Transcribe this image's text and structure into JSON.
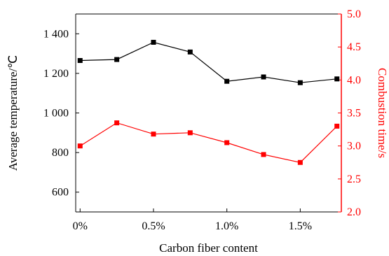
{
  "chart_data": {
    "type": "line",
    "x": [
      0,
      0.25,
      0.5,
      0.75,
      1.0,
      1.25,
      1.5,
      1.75
    ],
    "xlabel": "Carbon fiber content",
    "xticks": [
      {
        "value": 0,
        "label": "0%"
      },
      {
        "value": 0.5,
        "label": "0.5%"
      },
      {
        "value": 1.0,
        "label": "1.0%"
      },
      {
        "value": 1.5,
        "label": "1.5%"
      }
    ],
    "xlim": [
      -0.03,
      1.78
    ],
    "y_left": {
      "label": "Average temperature/℃",
      "lim": [
        500,
        1500
      ],
      "ticks": [
        {
          "value": 600,
          "label": "600"
        },
        {
          "value": 800,
          "label": "800"
        },
        {
          "value": 1000,
          "label": "1 000"
        },
        {
          "value": 1200,
          "label": "1 200"
        },
        {
          "value": 1400,
          "label": "1 400"
        }
      ]
    },
    "y_right": {
      "label": "Combustion time/s",
      "lim": [
        2.0,
        5.0
      ],
      "ticks": [
        {
          "value": 2.0,
          "label": "2.0"
        },
        {
          "value": 2.5,
          "label": "2.5"
        },
        {
          "value": 3.0,
          "label": "3.0"
        },
        {
          "value": 3.5,
          "label": "3.5"
        },
        {
          "value": 4.0,
          "label": "4.0"
        },
        {
          "value": 4.5,
          "label": "4.5"
        },
        {
          "value": 5.0,
          "label": "5.0"
        }
      ]
    },
    "series": [
      {
        "axis": "left",
        "color": "#000000",
        "marker": "square",
        "values": [
          1265,
          1270,
          1357,
          1308,
          1160,
          1182,
          1153,
          1172
        ]
      },
      {
        "axis": "right",
        "color": "#ff0000",
        "marker": "square",
        "values": [
          3.0,
          3.35,
          3.18,
          3.2,
          3.05,
          2.87,
          2.75,
          3.3
        ]
      }
    ],
    "grid": false,
    "legend": false
  }
}
